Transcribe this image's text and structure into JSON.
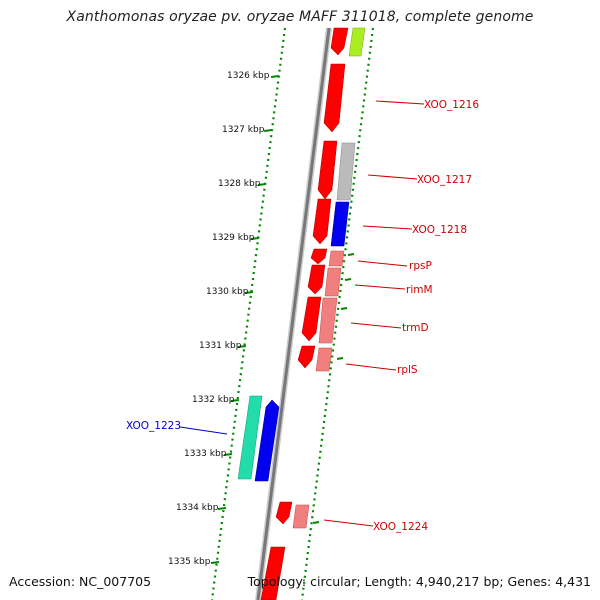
{
  "title": "Xanthomonas oryzae pv. oryzae MAFF 311018, complete genome",
  "accession": "Accession: NC_007705",
  "topology": "Topology: circular; Length: 4,940,217 bp; Genes: 4,431",
  "scale_ticks": [
    "1326 kbp",
    "1327 kbp",
    "1328 kbp",
    "1329 kbp",
    "1330 kbp",
    "1331 kbp",
    "1332 kbp",
    "1333 kbp",
    "1334 kbp",
    "1335 kbp"
  ],
  "colors": {
    "forward_red": "#ff0000",
    "pink": "#f08080",
    "grey": "#bbbbbb",
    "blue": "#0000ee",
    "teal": "#22ddaa",
    "lime": "#aaee22",
    "label_red": "#cc0000",
    "label_blue": "#0000cc",
    "track_dots": "#008800",
    "backbone": "#777777"
  },
  "gene_labels": [
    {
      "text": "XOO_1216",
      "color": "red"
    },
    {
      "text": "XOO_1217",
      "color": "red"
    },
    {
      "text": "XOO_1218",
      "color": "red"
    },
    {
      "text": "rpsP",
      "color": "red"
    },
    {
      "text": "rimM",
      "color": "red"
    },
    {
      "text": "trmD",
      "color": "red"
    },
    {
      "text": "rplS",
      "color": "red"
    },
    {
      "text": "XOO_1223",
      "color": "blue"
    },
    {
      "text": "XOO_1224",
      "color": "red"
    }
  ]
}
